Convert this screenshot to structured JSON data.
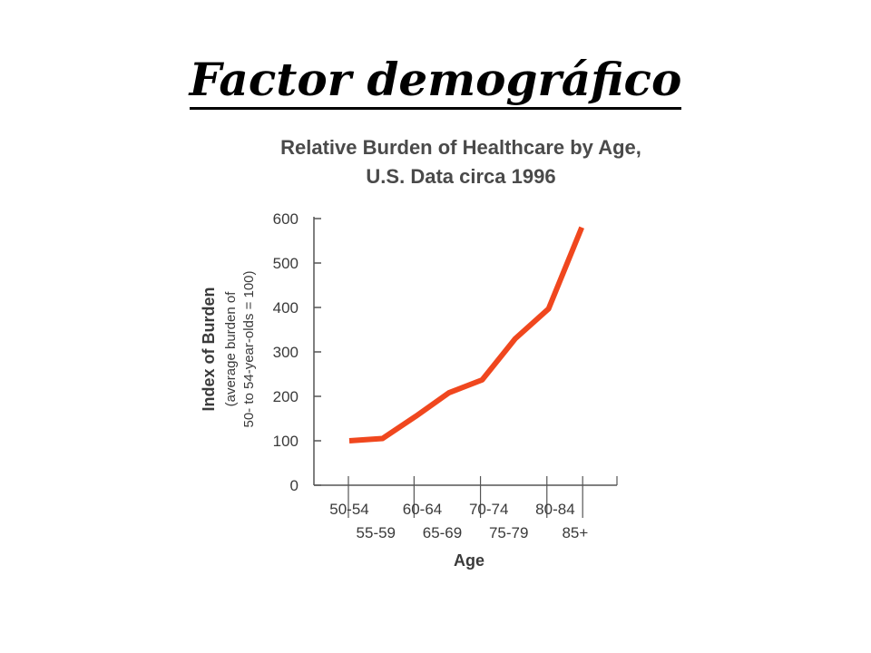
{
  "slide": {
    "title": "Factor demográfico"
  },
  "colors": {
    "line": "#f0471e",
    "axis": "#555555",
    "text": "#3a3a3a"
  },
  "chart_data": {
    "type": "line",
    "title_lines": [
      "Relative Burden of Healthcare by Age,",
      "U.S. Data circa 1996"
    ],
    "ylabel": "Index of Burden",
    "ylabel_sub": [
      "(average burden of",
      "50- to 54-year-olds = 100)"
    ],
    "xlabel": "Age",
    "categories": [
      "50-54",
      "55-59",
      "60-64",
      "65-69",
      "70-74",
      "75-79",
      "80-84",
      "85+"
    ],
    "series": [
      {
        "values": [
          100,
          105,
          155,
          208,
          237,
          330,
          397,
          580
        ]
      }
    ],
    "ylim": [
      0,
      600
    ],
    "yticks": [
      0,
      100,
      200,
      300,
      400,
      500,
      600
    ],
    "grid": false,
    "legend": "none"
  }
}
